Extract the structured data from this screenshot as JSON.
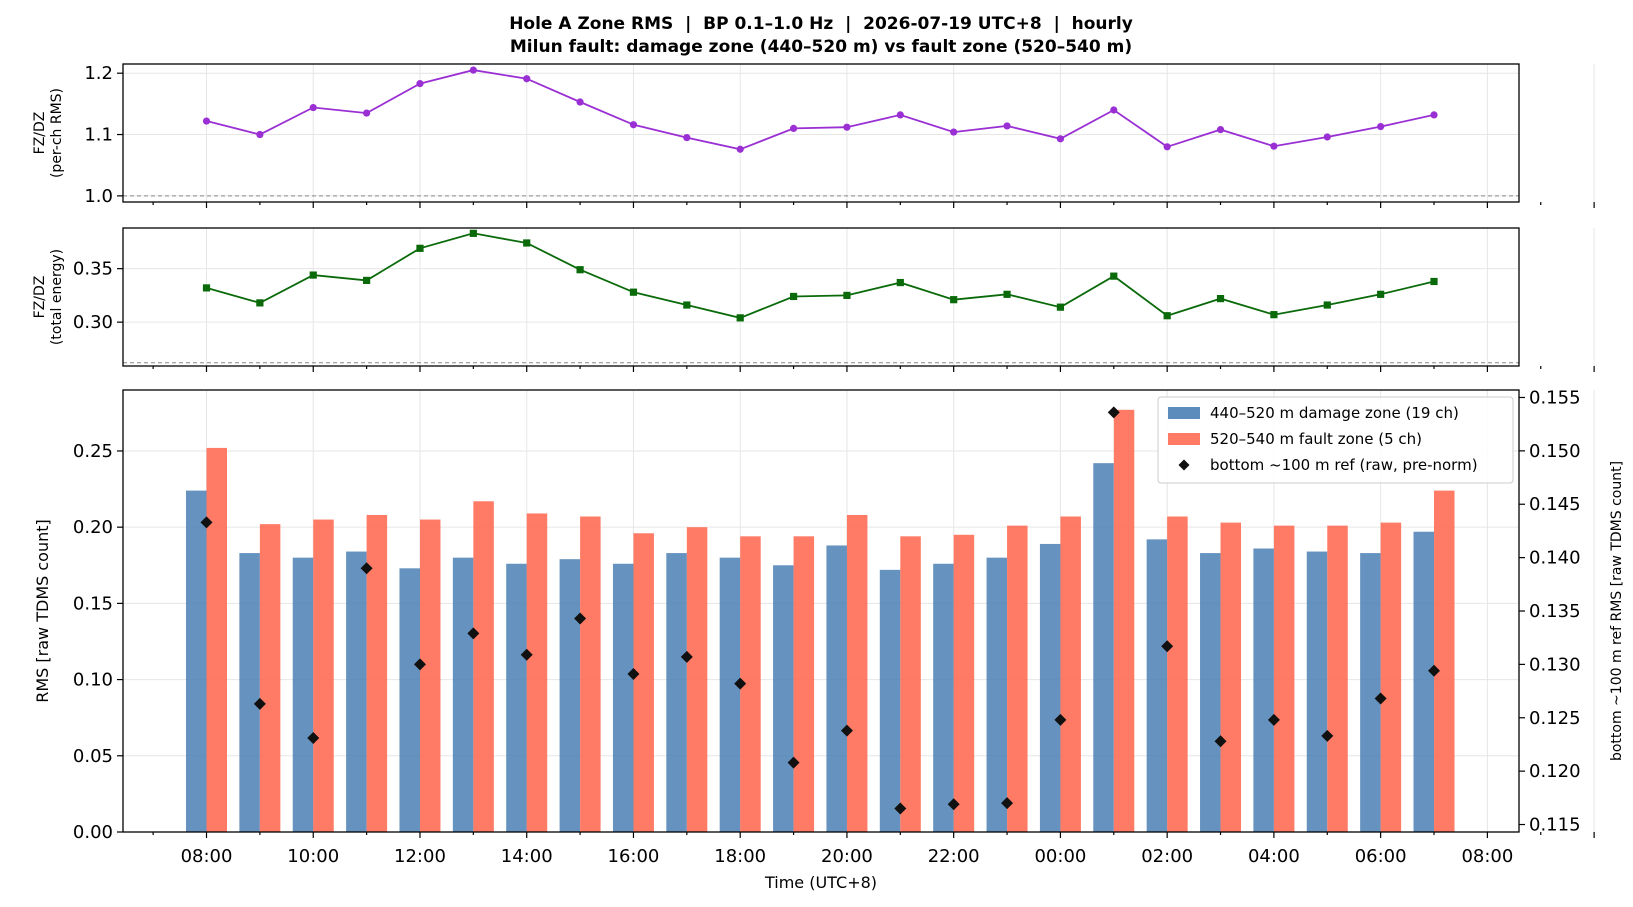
{
  "title_line1": "Hole A Zone RMS  |  BP 0.1–1.0 Hz  |  2026-07-19 UTC+8  |  hourly",
  "title_line2": "Milun fault: damage zone (440–520 m) vs fault zone (520–540 m)",
  "x_tick_labels": [
    "08:00",
    "10:00",
    "12:00",
    "14:00",
    "16:00",
    "18:00",
    "20:00",
    "22:00",
    "00:00",
    "02:00",
    "04:00",
    "06:00",
    "08:00"
  ],
  "xlabel": "Time (UTC+8)",
  "colors": {
    "damage_zone": "#4a7fb4",
    "fault_zone": "#ff6d55",
    "ratio_rms": "#9a2fd4",
    "ratio_energy": "#0a6a0a",
    "reference": "#111111",
    "baseline": "#888888"
  },
  "chart_data": [
    {
      "type": "line",
      "panel": "top",
      "ylabel_line1": "FZ/DZ",
      "ylabel_line2": "(per-ch RMS)",
      "ylim": [
        0.99,
        1.215
      ],
      "yticks": [
        1.0,
        1.1,
        1.2
      ],
      "ytick_labels": [
        "1.0",
        "1.1",
        "1.2"
      ],
      "baseline": 1.0,
      "grid": true,
      "x_hours": [
        "08:00",
        "09:00",
        "10:00",
        "11:00",
        "12:00",
        "13:00",
        "14:00",
        "15:00",
        "16:00",
        "17:00",
        "18:00",
        "19:00",
        "20:00",
        "21:00",
        "22:00",
        "23:00",
        "00:00",
        "01:00",
        "02:00",
        "03:00",
        "04:00",
        "05:00",
        "06:00",
        "07:00"
      ],
      "series": [
        {
          "values": [
            1.122,
            1.1,
            1.144,
            1.135,
            1.183,
            1.205,
            1.191,
            1.153,
            1.116,
            1.095,
            1.076,
            1.11,
            1.112,
            1.132,
            1.104,
            1.114,
            1.093,
            1.14,
            1.08,
            1.108,
            1.081,
            1.096,
            1.113,
            1.132
          ]
        }
      ]
    },
    {
      "type": "line",
      "panel": "middle",
      "ylabel_line1": "FZ/DZ",
      "ylabel_line2": "(total energy)",
      "ylim": [
        0.259,
        0.388
      ],
      "yticks": [
        0.3,
        0.35
      ],
      "ytick_labels": [
        "0.30",
        "0.35"
      ],
      "baseline": 0.262,
      "grid": true,
      "series": [
        {
          "values": [
            0.332,
            0.318,
            0.344,
            0.339,
            0.369,
            0.383,
            0.374,
            0.349,
            0.328,
            0.316,
            0.304,
            0.324,
            0.325,
            0.337,
            0.321,
            0.326,
            0.314,
            0.343,
            0.306,
            0.322,
            0.307,
            0.316,
            0.326,
            0.338
          ]
        }
      ]
    },
    {
      "type": "bar",
      "panel": "bottom",
      "ylabel": "RMS  [raw TDMS count]",
      "ylabel_right": "bottom ~100 m ref RMS  [raw TDMS count]",
      "ylim": [
        0,
        0.29
      ],
      "yticks": [
        0.0,
        0.05,
        0.1,
        0.15,
        0.2,
        0.25
      ],
      "ytick_labels": [
        "0.00",
        "0.05",
        "0.10",
        "0.15",
        "0.20",
        "0.25"
      ],
      "ylim_right": [
        0.1143,
        0.1557
      ],
      "yticks_right": [
        0.115,
        0.12,
        0.125,
        0.13,
        0.135,
        0.14,
        0.145,
        0.15,
        0.155
      ],
      "ytick_labels_right": [
        "0.115",
        "0.120",
        "0.125",
        "0.130",
        "0.135",
        "0.140",
        "0.145",
        "0.150",
        "0.155"
      ],
      "grid": true,
      "legend_position": "upper-right",
      "series": [
        {
          "name": "440–520 m  damage zone (19 ch)",
          "values": [
            0.224,
            0.183,
            0.18,
            0.184,
            0.173,
            0.18,
            0.176,
            0.179,
            0.176,
            0.183,
            0.18,
            0.175,
            0.188,
            0.172,
            0.176,
            0.18,
            0.189,
            0.242,
            0.192,
            0.183,
            0.186,
            0.184,
            0.183,
            0.197
          ]
        },
        {
          "name": "520–540 m  fault zone (5 ch)",
          "values": [
            0.252,
            0.202,
            0.205,
            0.208,
            0.205,
            0.217,
            0.209,
            0.207,
            0.196,
            0.2,
            0.194,
            0.194,
            0.208,
            0.194,
            0.195,
            0.201,
            0.207,
            0.277,
            0.207,
            0.203,
            0.201,
            0.201,
            0.203,
            0.224
          ]
        },
        {
          "name": "bottom ~100 m ref (raw, pre-norm)",
          "axis": "right",
          "values": [
            0.1433,
            0.1263,
            0.1231,
            0.139,
            0.13,
            0.1329,
            0.1309,
            0.1343,
            0.1291,
            0.1307,
            0.1282,
            0.1208,
            0.1238,
            0.1165,
            0.1169,
            0.117,
            0.1248,
            0.1536,
            0.1317,
            0.1228,
            0.1248,
            0.1233,
            0.1268,
            0.1294
          ]
        }
      ]
    }
  ]
}
